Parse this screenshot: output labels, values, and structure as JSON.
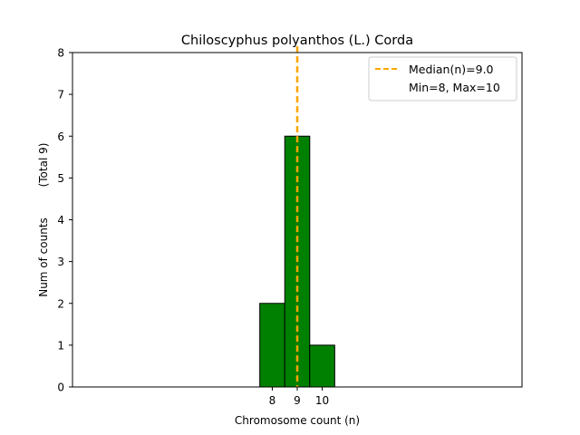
{
  "chart_data": {
    "type": "bar",
    "title": "Chiloscyphus polyanthos (L.) Corda",
    "xlabel": "Chromosome count (n)",
    "ylabel": "Num of counts",
    "ylabel_total": "(Total 9)",
    "categories": [
      "8",
      "9",
      "10"
    ],
    "x": [
      8,
      9,
      10
    ],
    "values": [
      2,
      6,
      1
    ],
    "xlim": [
      0,
      18
    ],
    "ylim": [
      0,
      8
    ],
    "yticks": [
      0,
      1,
      2,
      3,
      4,
      5,
      6,
      7,
      8
    ],
    "xticks": [
      8,
      9,
      10
    ],
    "bar_color": "#008000",
    "bar_edge_color": "#000000",
    "median": 9.0,
    "median_color": "#ffa500",
    "grid": false,
    "legend_position": "top-right",
    "legend": {
      "median_label": "Median(n)=9.0",
      "range_label": "Min=8, Max=10"
    }
  }
}
